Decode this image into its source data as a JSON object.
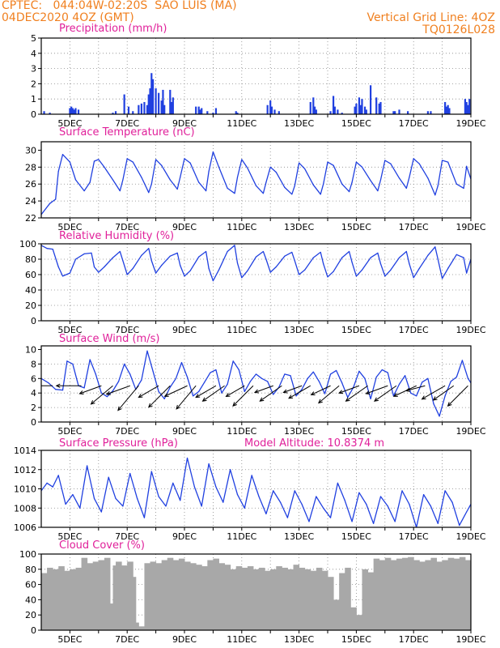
{
  "header": {
    "source": "CPTEC:",
    "location_coords": "044:04W-02:20S",
    "location_name": "SAO LUIS (MA)",
    "run_time": "04DEC2020 4OZ (GMT)",
    "grid_note": "Vertical Grid Line: 4OZ",
    "model": "TQ0126L028"
  },
  "colors": {
    "header": "#f08020",
    "titles": "#e0209a",
    "lines": "#2040e0",
    "cloud": "#a8a8a8",
    "arrows": "#000000"
  },
  "chart_data": [
    {
      "id": "precipitation",
      "type": "bar",
      "title": "Precipitation (mm/h)",
      "ylim": [
        0,
        5
      ],
      "yticks": [
        0,
        1,
        2,
        3,
        4,
        5
      ],
      "x_range_days": [
        4.0,
        19.0
      ],
      "xtick_labels": [
        "5DEC",
        "7DEC",
        "9DEC",
        "11DEC",
        "13DEC",
        "15DEC",
        "17DEC",
        "19DEC"
      ],
      "x": [
        4.1,
        4.3,
        5.0,
        5.05,
        5.1,
        5.15,
        5.2,
        5.3,
        6.5,
        6.6,
        6.9,
        7.05,
        7.2,
        7.4,
        7.5,
        7.6,
        7.7,
        7.75,
        7.8,
        7.85,
        7.9,
        8.0,
        8.1,
        8.2,
        8.25,
        8.3,
        8.5,
        8.55,
        8.6,
        9.4,
        9.5,
        9.55,
        9.6,
        9.8,
        10.0,
        10.1,
        10.8,
        10.85,
        11.9,
        12.0,
        12.05,
        12.15,
        12.3,
        13.4,
        13.5,
        13.55,
        13.6,
        14.1,
        14.2,
        14.25,
        14.35,
        14.5,
        14.95,
        15.0,
        15.1,
        15.15,
        15.2,
        15.3,
        15.35,
        15.5,
        15.7,
        15.8,
        15.85,
        16.3,
        16.35,
        16.5,
        16.8,
        17.5,
        17.6,
        18.1,
        18.15,
        18.2,
        18.25,
        18.8,
        18.85,
        18.9,
        18.95
      ],
      "values": [
        0.2,
        0.1,
        0.4,
        0.5,
        0.4,
        0.3,
        0.4,
        0.3,
        0.1,
        0.2,
        1.3,
        0.5,
        0.2,
        0.6,
        0.7,
        0.8,
        0.6,
        1.3,
        1.7,
        2.7,
        2.3,
        1.7,
        1.4,
        0.9,
        1.6,
        0.6,
        1.6,
        0.8,
        1.1,
        0.5,
        0.5,
        0.3,
        0.4,
        0.2,
        0.1,
        0.4,
        0.2,
        0.1,
        0.6,
        0.9,
        0.5,
        0.3,
        0.2,
        0.8,
        1.1,
        0.5,
        0.3,
        0.2,
        1.2,
        0.5,
        0.3,
        0.1,
        0.5,
        0.7,
        1.1,
        0.6,
        1.0,
        0.5,
        0.3,
        1.9,
        1.1,
        0.7,
        0.8,
        0.2,
        0.2,
        0.3,
        0.2,
        0.2,
        0.2,
        0.8,
        0.5,
        0.6,
        0.4,
        1.0,
        0.8,
        0.6,
        1.0
      ]
    },
    {
      "id": "temperature",
      "type": "line",
      "title": "Surface Temperature (nC)",
      "ylim": [
        22,
        31
      ],
      "yticks": [
        22,
        24,
        26,
        28,
        30
      ],
      "xtick_labels": [
        "5DEC",
        "7DEC",
        "9DEC",
        "11DEC",
        "13DEC",
        "15DEC",
        "17DEC",
        "19DEC"
      ],
      "x": [
        4.0,
        4.3,
        4.5,
        4.6,
        4.75,
        5.0,
        5.2,
        5.5,
        5.7,
        5.85,
        6.0,
        6.2,
        6.5,
        6.75,
        6.85,
        7.0,
        7.2,
        7.5,
        7.75,
        7.85,
        8.0,
        8.2,
        8.5,
        8.75,
        8.85,
        9.0,
        9.2,
        9.5,
        9.75,
        9.85,
        10.0,
        10.2,
        10.5,
        10.75,
        10.85,
        11.0,
        11.2,
        11.5,
        11.75,
        11.85,
        12.0,
        12.2,
        12.5,
        12.75,
        12.85,
        13.0,
        13.2,
        13.5,
        13.75,
        13.85,
        14.0,
        14.2,
        14.5,
        14.75,
        14.85,
        15.0,
        15.2,
        15.5,
        15.75,
        15.85,
        16.0,
        16.2,
        16.5,
        16.75,
        16.85,
        17.0,
        17.2,
        17.5,
        17.75,
        17.85,
        18.0,
        18.2,
        18.5,
        18.75,
        18.85,
        19.0
      ],
      "values": [
        22.4,
        23.7,
        24.2,
        27.5,
        29.5,
        28.6,
        26.5,
        25.2,
        26.2,
        28.7,
        28.9,
        28.0,
        26.5,
        25.2,
        26.5,
        29.0,
        28.6,
        26.8,
        25.0,
        26.0,
        28.9,
        28.2,
        26.5,
        25.4,
        26.8,
        29.0,
        28.5,
        26.2,
        25.2,
        27.5,
        29.8,
        28.0,
        25.5,
        24.9,
        26.8,
        28.9,
        27.9,
        25.8,
        24.9,
        26.2,
        28.0,
        27.4,
        25.6,
        24.8,
        25.8,
        28.5,
        27.8,
        25.9,
        24.8,
        26.0,
        28.6,
        28.2,
        26.0,
        25.1,
        26.2,
        28.6,
        28.0,
        26.4,
        25.2,
        26.5,
        28.8,
        28.4,
        26.7,
        25.5,
        26.8,
        29.0,
        28.4,
        26.7,
        24.7,
        25.8,
        28.8,
        28.6,
        26.0,
        25.5,
        28.1,
        26.6
      ]
    },
    {
      "id": "humidity",
      "type": "line",
      "title": "Relative Humidity (%)",
      "ylim": [
        0,
        100
      ],
      "yticks": [
        0,
        20,
        40,
        60,
        80,
        100
      ],
      "xtick_labels": [
        "5DEC",
        "7DEC",
        "9DEC",
        "11DEC",
        "13DEC",
        "15DEC",
        "17DEC",
        "19DEC"
      ],
      "x": [
        4.0,
        4.2,
        4.4,
        4.6,
        4.75,
        5.0,
        5.2,
        5.5,
        5.75,
        5.85,
        6.0,
        6.2,
        6.5,
        6.75,
        6.85,
        7.0,
        7.2,
        7.5,
        7.75,
        7.85,
        8.0,
        8.2,
        8.5,
        8.75,
        8.85,
        9.0,
        9.2,
        9.5,
        9.75,
        9.85,
        10.0,
        10.2,
        10.5,
        10.75,
        10.85,
        11.0,
        11.2,
        11.5,
        11.75,
        11.85,
        12.0,
        12.2,
        12.5,
        12.75,
        12.85,
        13.0,
        13.2,
        13.5,
        13.75,
        13.85,
        14.0,
        14.2,
        14.5,
        14.75,
        14.85,
        15.0,
        15.2,
        15.5,
        15.75,
        15.85,
        16.0,
        16.2,
        16.5,
        16.75,
        16.85,
        17.0,
        17.2,
        17.5,
        17.75,
        17.85,
        18.0,
        18.2,
        18.5,
        18.75,
        18.85,
        19.0
      ],
      "values": [
        98,
        94,
        93,
        70,
        58,
        62,
        80,
        87,
        88,
        70,
        63,
        70,
        82,
        90,
        78,
        60,
        68,
        85,
        94,
        78,
        62,
        72,
        84,
        88,
        72,
        58,
        65,
        83,
        90,
        68,
        52,
        66,
        90,
        98,
        75,
        56,
        65,
        83,
        90,
        80,
        63,
        70,
        84,
        89,
        78,
        60,
        66,
        82,
        89,
        74,
        57,
        64,
        82,
        90,
        76,
        58,
        66,
        82,
        88,
        74,
        58,
        66,
        82,
        90,
        74,
        56,
        68,
        85,
        96,
        80,
        55,
        68,
        86,
        82,
        62,
        80
      ]
    },
    {
      "id": "wind",
      "type": "line",
      "title": "Surface Wind (m/s)",
      "ylim": [
        0,
        10.5
      ],
      "yticks": [
        0,
        2,
        4,
        6,
        8,
        10
      ],
      "xtick_labels": [
        "5DEC",
        "7DEC",
        "9DEC",
        "11DEC",
        "13DEC",
        "15DEC",
        "17DEC",
        "19DEC"
      ],
      "x": [
        4.0,
        4.25,
        4.5,
        4.75,
        4.9,
        5.1,
        5.3,
        5.5,
        5.7,
        5.9,
        6.1,
        6.3,
        6.5,
        6.7,
        6.9,
        7.1,
        7.3,
        7.5,
        7.7,
        7.9,
        8.1,
        8.3,
        8.5,
        8.7,
        8.9,
        9.1,
        9.3,
        9.5,
        9.7,
        9.9,
        10.1,
        10.3,
        10.5,
        10.7,
        10.9,
        11.1,
        11.3,
        11.5,
        11.7,
        11.9,
        12.1,
        12.3,
        12.5,
        12.7,
        12.9,
        13.1,
        13.3,
        13.5,
        13.7,
        13.9,
        14.1,
        14.3,
        14.5,
        14.7,
        14.9,
        15.1,
        15.3,
        15.5,
        15.7,
        15.9,
        16.1,
        16.3,
        16.5,
        16.7,
        16.9,
        17.1,
        17.3,
        17.5,
        17.7,
        17.9,
        18.1,
        18.3,
        18.5,
        18.7,
        18.9,
        19.0
      ],
      "values": [
        6.0,
        5.4,
        4.5,
        4.4,
        8.4,
        8.0,
        5.0,
        4.7,
        8.6,
        6.6,
        4.0,
        3.5,
        4.3,
        5.6,
        8.0,
        6.6,
        4.5,
        5.8,
        9.8,
        7.0,
        4.2,
        3.2,
        4.8,
        6.0,
        8.2,
        6.2,
        3.6,
        4.2,
        5.5,
        6.8,
        7.2,
        4.0,
        5.2,
        8.4,
        7.2,
        4.2,
        5.6,
        6.6,
        6.0,
        5.6,
        3.8,
        4.8,
        6.6,
        6.4,
        3.6,
        4.5,
        6.0,
        6.9,
        5.6,
        3.9,
        6.6,
        7.1,
        5.4,
        3.4,
        4.8,
        7.0,
        6.0,
        3.2,
        6.2,
        7.2,
        6.8,
        3.6,
        5.2,
        6.4,
        4.0,
        3.6,
        5.5,
        6.0,
        2.5,
        0.8,
        3.6,
        5.6,
        6.2,
        8.5,
        6.0,
        5.4
      ],
      "arrow_x": [
        4.4,
        5.4,
        6.1,
        6.5,
        7.1,
        7.4,
        8.1,
        8.5,
        9.1,
        9.4,
        10.1,
        10.4,
        11.1,
        11.4,
        12.1,
        12.4,
        13.1,
        13.4,
        14.1,
        14.4,
        15.1,
        15.4,
        16.1,
        16.4,
        17.1,
        17.4,
        18.1,
        18.4,
        18.9
      ],
      "arrow_dir_deg": [
        180,
        180,
        200,
        220,
        200,
        230,
        210,
        225,
        205,
        230,
        210,
        215,
        210,
        225,
        200,
        215,
        200,
        210,
        205,
        220,
        200,
        215,
        200,
        215,
        205,
        195,
        210,
        215,
        225
      ],
      "arrow_len": [
        1.2,
        1.4,
        1.3,
        1.6,
        1.4,
        1.8,
        1.3,
        1.7,
        1.4,
        1.7,
        1.3,
        1.5,
        1.2,
        1.6,
        1.1,
        1.5,
        1.1,
        1.4,
        1.2,
        1.5,
        1.2,
        1.5,
        1.3,
        1.5,
        1.4,
        1.1,
        1.5,
        1.4,
        1.6
      ]
    },
    {
      "id": "pressure",
      "type": "line",
      "title": "Surface Pressure (hPa)",
      "annotation": "Model Altitude: 10.8374 m",
      "ylim": [
        1006,
        1014
      ],
      "yticks": [
        1006,
        1008,
        1010,
        1012,
        1014
      ],
      "xtick_labels": [
        "5DEC",
        "7DEC",
        "9DEC",
        "11DEC",
        "13DEC",
        "15DEC",
        "17DEC",
        "19DEC"
      ],
      "x": [
        4.0,
        4.2,
        4.4,
        4.6,
        4.85,
        5.1,
        5.35,
        5.6,
        5.85,
        6.1,
        6.35,
        6.6,
        6.85,
        7.1,
        7.35,
        7.6,
        7.85,
        8.1,
        8.35,
        8.6,
        8.85,
        9.1,
        9.35,
        9.6,
        9.85,
        10.1,
        10.35,
        10.6,
        10.85,
        11.1,
        11.35,
        11.6,
        11.85,
        12.1,
        12.35,
        12.6,
        12.85,
        13.1,
        13.35,
        13.6,
        13.85,
        14.1,
        14.35,
        14.6,
        14.85,
        15.1,
        15.35,
        15.6,
        15.85,
        16.1,
        16.35,
        16.6,
        16.85,
        17.1,
        17.35,
        17.6,
        17.85,
        18.1,
        18.35,
        18.6,
        18.85,
        19.0
      ],
      "values": [
        1009.8,
        1010.6,
        1010.2,
        1011.4,
        1008.4,
        1009.4,
        1008.0,
        1012.4,
        1009.0,
        1007.6,
        1011.2,
        1009.0,
        1008.2,
        1011.6,
        1009.0,
        1007.0,
        1011.8,
        1009.2,
        1008.2,
        1010.6,
        1008.8,
        1013.2,
        1010.2,
        1008.2,
        1012.6,
        1010.2,
        1008.6,
        1012.0,
        1009.4,
        1008.0,
        1011.4,
        1009.2,
        1007.4,
        1009.8,
        1008.6,
        1007.0,
        1009.8,
        1008.4,
        1006.6,
        1009.2,
        1008.0,
        1007.0,
        1010.6,
        1008.8,
        1006.6,
        1009.6,
        1008.4,
        1006.4,
        1009.2,
        1008.2,
        1006.6,
        1009.8,
        1008.4,
        1006.0,
        1009.4,
        1008.2,
        1006.4,
        1009.8,
        1008.6,
        1006.2,
        1007.6,
        1008.4
      ]
    },
    {
      "id": "cloud",
      "type": "bar",
      "title": "Cloud Cover (%)",
      "ylim": [
        0,
        100
      ],
      "yticks": [
        0,
        20,
        40,
        60,
        80,
        100
      ],
      "xtick_labels": [
        "5DEC",
        "7DEC",
        "9DEC",
        "11DEC",
        "13DEC",
        "15DEC",
        "17DEC",
        "19DEC"
      ],
      "x": [
        4.0,
        4.2,
        4.4,
        4.6,
        4.8,
        5.0,
        5.2,
        5.4,
        5.5,
        5.6,
        5.8,
        6.0,
        6.2,
        6.3,
        6.4,
        6.5,
        6.6,
        6.8,
        7.0,
        7.1,
        7.2,
        7.4,
        7.6,
        7.8,
        8.0,
        8.2,
        8.4,
        8.6,
        8.8,
        9.0,
        9.2,
        9.4,
        9.6,
        9.8,
        10.0,
        10.2,
        10.4,
        10.6,
        10.8,
        11.0,
        11.2,
        11.4,
        11.6,
        11.8,
        12.0,
        12.2,
        12.4,
        12.6,
        12.8,
        13.0,
        13.2,
        13.4,
        13.6,
        13.8,
        14.0,
        14.2,
        14.4,
        14.6,
        14.8,
        15.0,
        15.2,
        15.4,
        15.6,
        15.8,
        16.0,
        16.2,
        16.4,
        16.6,
        16.8,
        17.0,
        17.2,
        17.4,
        17.6,
        17.8,
        18.0,
        18.2,
        18.4,
        18.6,
        18.8,
        19.0
      ],
      "values": [
        75,
        82,
        80,
        84,
        78,
        80,
        82,
        95,
        40,
        88,
        90,
        92,
        95,
        35,
        5,
        85,
        90,
        85,
        90,
        70,
        10,
        5,
        88,
        90,
        88,
        92,
        95,
        92,
        94,
        90,
        88,
        86,
        84,
        92,
        94,
        88,
        86,
        80,
        84,
        82,
        84,
        80,
        82,
        78,
        80,
        84,
        82,
        80,
        86,
        82,
        80,
        78,
        82,
        78,
        70,
        40,
        75,
        82,
        30,
        20,
        80,
        76,
        94,
        92,
        95,
        92,
        94,
        95,
        96,
        92,
        90,
        92,
        95,
        90,
        92,
        95,
        94,
        96,
        92,
        94
      ]
    }
  ]
}
